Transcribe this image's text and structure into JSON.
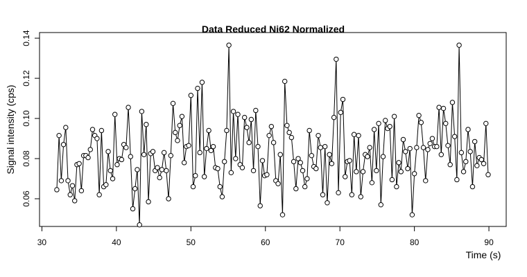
{
  "chart_data": {
    "type": "line",
    "title": "Data Reduced Ni62 Normalized",
    "x_label": "Time (s)",
    "y_label": "Signal intensity (cps)",
    "xlim": [
      29.68,
      92.32
    ],
    "ylim": [
      0.0462,
      0.1428
    ],
    "xticks": [
      30,
      40,
      50,
      60,
      70,
      80,
      90
    ],
    "yticks": [
      0.06,
      0.08,
      {
        "value": 0.1,
        "label": "0.10"
      },
      0.12,
      0.14
    ],
    "series": [
      {
        "color": "#000000",
        "x": [
          32,
          32.3,
          32.6,
          32.9,
          33.2,
          33.5,
          33.8,
          34.1,
          34.4,
          34.7,
          35,
          35.3,
          35.6,
          35.9,
          36.2,
          36.5,
          36.8,
          37.1,
          37.4,
          37.7,
          38,
          38.3,
          38.6,
          38.9,
          39.2,
          39.5,
          39.8,
          40.1,
          40.4,
          40.7,
          41,
          41.3,
          41.6,
          41.9,
          42.2,
          42.5,
          42.8,
          43.1,
          43.4,
          43.7,
          44,
          44.3,
          44.6,
          44.9,
          45.2,
          45.5,
          45.8,
          46.1,
          46.4,
          46.7,
          47,
          47.3,
          47.6,
          47.9,
          48.2,
          48.5,
          48.8,
          49.1,
          49.4,
          49.7,
          50,
          50.3,
          50.6,
          50.9,
          51.2,
          51.5,
          51.8,
          52.1,
          52.4,
          52.7,
          53,
          53.3,
          53.6,
          53.9,
          54.2,
          54.5,
          54.8,
          55.1,
          55.4,
          55.7,
          56,
          56.3,
          56.6,
          56.9,
          57.2,
          57.5,
          57.8,
          58.1,
          58.4,
          58.7,
          59,
          59.3,
          59.6,
          59.9,
          60.2,
          60.5,
          60.8,
          61.1,
          61.4,
          61.7,
          62,
          62.3,
          62.6,
          62.9,
          63.2,
          63.5,
          63.8,
          64.1,
          64.4,
          64.7,
          65,
          65.3,
          65.6,
          65.9,
          66.2,
          66.5,
          66.8,
          67.1,
          67.4,
          67.7,
          68,
          68.3,
          68.6,
          68.9,
          69.2,
          69.5,
          69.8,
          70.1,
          70.4,
          70.7,
          71,
          71.3,
          71.6,
          71.9,
          72.2,
          72.5,
          72.8,
          73.1,
          73.4,
          73.7,
          74,
          74.3,
          74.6,
          74.9,
          75.2,
          75.5,
          75.8,
          76.1,
          76.4,
          76.7,
          77,
          77.3,
          77.6,
          77.9,
          78.2,
          78.5,
          78.8,
          79.1,
          79.4,
          79.7,
          80,
          80.3,
          80.6,
          80.9,
          81.2,
          81.5,
          81.8,
          82.1,
          82.4,
          82.7,
          83,
          83.3,
          83.6,
          83.9,
          84.2,
          84.5,
          84.8,
          85.1,
          85.4,
          85.7,
          86,
          86.3,
          86.6,
          86.9,
          87.2,
          87.5,
          87.8,
          88.1,
          88.4,
          88.7,
          89,
          89.3,
          89.6,
          89.9
        ],
        "values": [
          0.0645,
          0.0915,
          0.069,
          0.087,
          0.0955,
          0.069,
          0.062,
          0.0665,
          0.059,
          0.077,
          0.0775,
          0.064,
          0.0815,
          0.0815,
          0.0805,
          0.0845,
          0.0945,
          0.0915,
          0.09,
          0.062,
          0.094,
          0.066,
          0.067,
          0.0835,
          0.074,
          0.07,
          0.102,
          0.077,
          0.08,
          0.0795,
          0.087,
          0.0855,
          0.1055,
          0.081,
          0.055,
          0.065,
          0.0745,
          0.047,
          0.1035,
          0.082,
          0.097,
          0.0585,
          0.0825,
          0.0835,
          0.074,
          0.0755,
          0.0705,
          0.0745,
          0.083,
          0.074,
          0.06,
          0.0815,
          0.1075,
          0.093,
          0.089,
          0.0965,
          0.101,
          0.078,
          0.086,
          0.0865,
          0.1115,
          0.066,
          0.0715,
          0.115,
          0.083,
          0.118,
          0.071,
          0.085,
          0.094,
          0.084,
          0.086,
          0.0755,
          0.075,
          0.066,
          0.061,
          0.0785,
          0.094,
          0.1365,
          0.073,
          0.1035,
          0.08,
          0.102,
          0.077,
          0.0755,
          0.1005,
          0.0955,
          0.088,
          0.0995,
          0.074,
          0.104,
          0.086,
          0.0565,
          0.079,
          0.0715,
          0.072,
          0.0915,
          0.096,
          0.088,
          0.069,
          0.0675,
          0.082,
          0.052,
          0.1185,
          0.0965,
          0.093,
          0.0905,
          0.0785,
          0.065,
          0.08,
          0.078,
          0.074,
          0.066,
          0.07,
          0.094,
          0.0815,
          0.076,
          0.075,
          0.0915,
          0.0855,
          0.062,
          0.086,
          0.058,
          0.082,
          0.0775,
          0.1005,
          0.1295,
          0.063,
          0.103,
          0.1095,
          0.071,
          0.0785,
          0.079,
          0.062,
          0.092,
          0.0735,
          0.0915,
          0.061,
          0.0735,
          0.082,
          0.081,
          0.0855,
          0.068,
          0.0945,
          0.074,
          0.0975,
          0.057,
          0.081,
          0.099,
          0.095,
          0.096,
          0.0695,
          0.101,
          0.066,
          0.078,
          0.0735,
          0.0895,
          0.0835,
          0.075,
          0.085,
          0.052,
          0.0725,
          0.0855,
          0.1015,
          0.098,
          0.0855,
          0.069,
          0.0845,
          0.0875,
          0.09,
          0.086,
          0.086,
          0.1055,
          0.082,
          0.105,
          0.0975,
          0.0865,
          0.077,
          0.108,
          0.091,
          0.0695,
          0.1365,
          0.083,
          0.0735,
          0.0785,
          0.0945,
          0.0835,
          0.066,
          0.0885,
          0.0765,
          0.0805,
          0.0795,
          0.0775,
          0.0975,
          0.072
        ]
      }
    ]
  }
}
